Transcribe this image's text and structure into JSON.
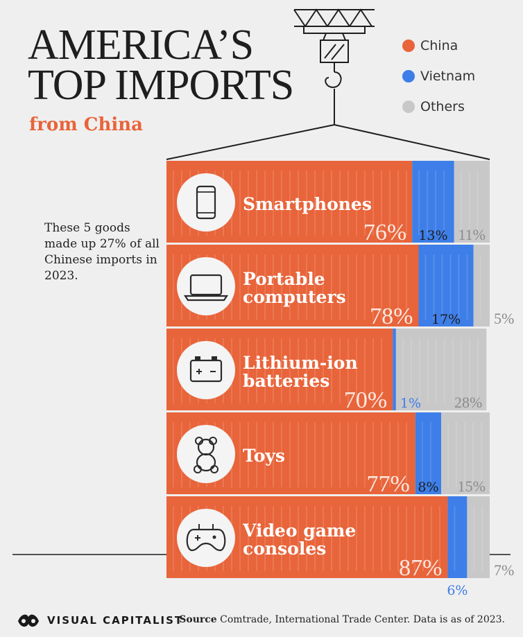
{
  "header": {
    "title_line1": "AMERICA’S",
    "title_line2": "TOP IMPORTS",
    "subtitle": "from China"
  },
  "legend": [
    {
      "label": "China",
      "color": "#e8643a"
    },
    {
      "label": "Vietnam",
      "color": "#3d7ee8"
    },
    {
      "label": "Others",
      "color": "#c8c8c8"
    }
  ],
  "note": "These 5 goods made up 27% of all Chinese imports in 2023.",
  "footer": {
    "brand": "VISUAL CAPITALIST",
    "source_label": "Source",
    "source_text": "Comtrade, International Trade Center. Data is as of 2023."
  },
  "chart_data": {
    "type": "bar",
    "orientation": "horizontal",
    "stacked": true,
    "categories": [
      "Smartphones",
      "Portable computers",
      "Lithium-ion batteries",
      "Toys",
      "Video game consoles"
    ],
    "category_lines": [
      [
        "Smartphones"
      ],
      [
        "Portable",
        "computers"
      ],
      [
        "Lithium-ion",
        "batteries"
      ],
      [
        "Toys"
      ],
      [
        "Video game",
        "consoles"
      ]
    ],
    "icons": [
      "smartphone-icon",
      "laptop-icon",
      "battery-icon",
      "teddy-bear-icon",
      "gamepad-icon"
    ],
    "series": [
      {
        "name": "China",
        "values": [
          76,
          78,
          70,
          77,
          87
        ],
        "labels": [
          "76%",
          "78%",
          "70%",
          "77%",
          "87%"
        ],
        "color": "#e8643a"
      },
      {
        "name": "Vietnam",
        "values": [
          13,
          17,
          1,
          8,
          6
        ],
        "labels": [
          "13%",
          "17%",
          "1%",
          "8%",
          "6%"
        ],
        "color": "#3d7ee8"
      },
      {
        "name": "Others",
        "values": [
          11,
          5,
          28,
          15,
          7
        ],
        "labels": [
          "11%",
          "5%",
          "28%",
          "15%",
          "7%"
        ],
        "color": "#c8c8c8"
      }
    ],
    "xlim": [
      0,
      100
    ]
  }
}
